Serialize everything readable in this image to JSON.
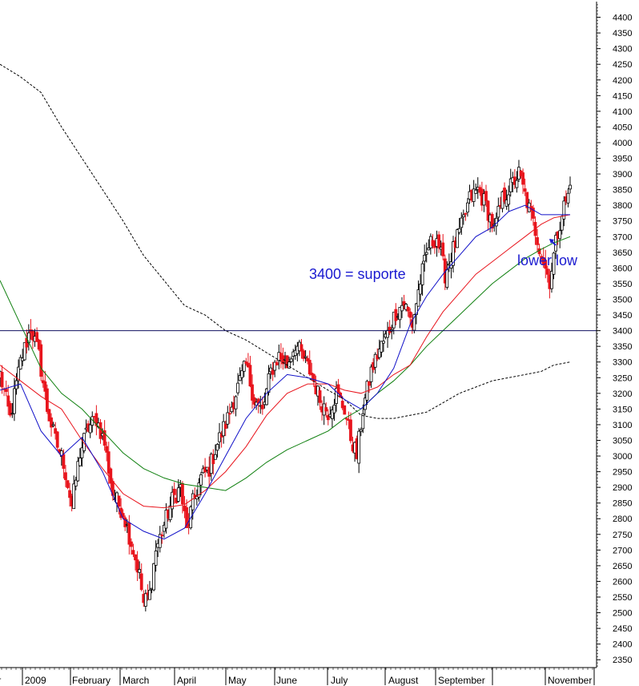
{
  "chart_data": {
    "type": "candlestick",
    "title": "",
    "xlabel": "",
    "ylabel": "",
    "ylim": [
      2325,
      4450
    ],
    "y_ticks": [
      2350,
      2400,
      2450,
      2500,
      2550,
      2600,
      2650,
      2700,
      2750,
      2800,
      2850,
      2900,
      2950,
      3000,
      3050,
      3100,
      3150,
      3200,
      3250,
      3300,
      3350,
      3400,
      3450,
      3500,
      3550,
      3600,
      3650,
      3700,
      3750,
      3800,
      3850,
      3900,
      3950,
      4000,
      4050,
      4100,
      4150,
      4200,
      4250,
      4300,
      4350,
      4400
    ],
    "month_labels": [
      "mber",
      "2009",
      "February",
      "March",
      "April",
      "May",
      "June",
      "July",
      "August",
      "September",
      "November"
    ],
    "grid": false,
    "colors": {
      "up_candle": "#000000",
      "down_candle": "#e8141c",
      "ma_short": "#1010c8",
      "ma_mid": "#e8141c",
      "ma_long": "#108010",
      "ma_longest": "#000000",
      "support_line": "#101060",
      "annotation": "#1a1ad0"
    },
    "support_level": 3400,
    "annotations": [
      {
        "text": "3400 = suporte"
      },
      {
        "text": "lower low"
      }
    ],
    "anchor_closes": [
      [
        0,
        3260
      ],
      [
        5,
        3120
      ],
      [
        10,
        3300
      ],
      [
        15,
        3410
      ],
      [
        19,
        3320
      ],
      [
        23,
        3150
      ],
      [
        27,
        3050
      ],
      [
        31,
        2980
      ],
      [
        35,
        2840
      ],
      [
        39,
        3010
      ],
      [
        43,
        3090
      ],
      [
        47,
        3120
      ],
      [
        51,
        3040
      ],
      [
        55,
        2880
      ],
      [
        60,
        2820
      ],
      [
        65,
        2700
      ],
      [
        68,
        2620
      ],
      [
        70,
        2530
      ],
      [
        73,
        2560
      ],
      [
        76,
        2700
      ],
      [
        80,
        2780
      ],
      [
        84,
        2860
      ],
      [
        88,
        2900
      ],
      [
        91,
        2760
      ],
      [
        94,
        2850
      ],
      [
        98,
        2930
      ],
      [
        102,
        2960
      ],
      [
        106,
        3040
      ],
      [
        111,
        3120
      ],
      [
        116,
        3220
      ],
      [
        120,
        3290
      ],
      [
        124,
        3180
      ],
      [
        128,
        3140
      ],
      [
        132,
        3270
      ],
      [
        136,
        3320
      ],
      [
        140,
        3290
      ],
      [
        144,
        3360
      ],
      [
        148,
        3310
      ],
      [
        152,
        3260
      ],
      [
        156,
        3180
      ],
      [
        160,
        3140
      ],
      [
        164,
        3200
      ],
      [
        168,
        3150
      ],
      [
        171,
        3060
      ],
      [
        174,
        3000
      ],
      [
        177,
        3150
      ],
      [
        181,
        3270
      ],
      [
        185,
        3340
      ],
      [
        189,
        3390
      ],
      [
        193,
        3460
      ],
      [
        197,
        3490
      ],
      [
        201,
        3420
      ],
      [
        205,
        3560
      ],
      [
        209,
        3670
      ],
      [
        213,
        3700
      ],
      [
        217,
        3580
      ],
      [
        221,
        3660
      ],
      [
        225,
        3730
      ],
      [
        229,
        3820
      ],
      [
        233,
        3850
      ],
      [
        237,
        3800
      ],
      [
        241,
        3720
      ],
      [
        245,
        3820
      ],
      [
        249,
        3860
      ],
      [
        253,
        3900
      ],
      [
        257,
        3810
      ],
      [
        261,
        3720
      ],
      [
        265,
        3620
      ],
      [
        268,
        3560
      ],
      [
        271,
        3680
      ],
      [
        274,
        3780
      ],
      [
        277,
        3830
      ],
      [
        278,
        3860
      ]
    ],
    "candle_count": 279,
    "ma_short_points": [
      [
        0,
        3210
      ],
      [
        10,
        3230
      ],
      [
        20,
        3080
      ],
      [
        30,
        3000
      ],
      [
        40,
        3060
      ],
      [
        50,
        2950
      ],
      [
        60,
        2800
      ],
      [
        70,
        2760
      ],
      [
        80,
        2735
      ],
      [
        90,
        2770
      ],
      [
        100,
        2880
      ],
      [
        110,
        3000
      ],
      [
        120,
        3120
      ],
      [
        130,
        3200
      ],
      [
        140,
        3260
      ],
      [
        150,
        3250
      ],
      [
        160,
        3230
      ],
      [
        168,
        3180
      ],
      [
        176,
        3150
      ],
      [
        184,
        3200
      ],
      [
        192,
        3280
      ],
      [
        200,
        3420
      ],
      [
        208,
        3510
      ],
      [
        216,
        3580
      ],
      [
        224,
        3640
      ],
      [
        232,
        3700
      ],
      [
        240,
        3730
      ],
      [
        248,
        3780
      ],
      [
        256,
        3800
      ],
      [
        264,
        3770
      ],
      [
        270,
        3770
      ],
      [
        278,
        3770
      ]
    ],
    "ma_mid_points": [
      [
        0,
        3290
      ],
      [
        10,
        3240
      ],
      [
        20,
        3190
      ],
      [
        30,
        3150
      ],
      [
        40,
        3050
      ],
      [
        50,
        2960
      ],
      [
        60,
        2880
      ],
      [
        70,
        2840
      ],
      [
        80,
        2835
      ],
      [
        90,
        2845
      ],
      [
        100,
        2890
      ],
      [
        110,
        2950
      ],
      [
        120,
        3030
      ],
      [
        130,
        3130
      ],
      [
        140,
        3200
      ],
      [
        150,
        3230
      ],
      [
        160,
        3230
      ],
      [
        168,
        3210
      ],
      [
        176,
        3200
      ],
      [
        184,
        3220
      ],
      [
        192,
        3260
      ],
      [
        200,
        3290
      ],
      [
        208,
        3380
      ],
      [
        216,
        3460
      ],
      [
        224,
        3520
      ],
      [
        232,
        3580
      ],
      [
        240,
        3620
      ],
      [
        248,
        3660
      ],
      [
        256,
        3700
      ],
      [
        264,
        3740
      ],
      [
        270,
        3760
      ],
      [
        278,
        3770
      ]
    ],
    "ma_long_points": [
      [
        0,
        3560
      ],
      [
        10,
        3420
      ],
      [
        20,
        3280
      ],
      [
        30,
        3200
      ],
      [
        40,
        3150
      ],
      [
        50,
        3080
      ],
      [
        60,
        3010
      ],
      [
        70,
        2960
      ],
      [
        80,
        2930
      ],
      [
        90,
        2910
      ],
      [
        100,
        2900
      ],
      [
        110,
        2890
      ],
      [
        120,
        2930
      ],
      [
        130,
        2980
      ],
      [
        140,
        3020
      ],
      [
        150,
        3050
      ],
      [
        160,
        3080
      ],
      [
        168,
        3120
      ],
      [
        176,
        3150
      ],
      [
        184,
        3200
      ],
      [
        192,
        3240
      ],
      [
        200,
        3290
      ],
      [
        208,
        3350
      ],
      [
        216,
        3400
      ],
      [
        224,
        3450
      ],
      [
        232,
        3500
      ],
      [
        240,
        3550
      ],
      [
        248,
        3590
      ],
      [
        256,
        3630
      ],
      [
        264,
        3660
      ],
      [
        270,
        3680
      ],
      [
        278,
        3700
      ]
    ],
    "ma_longest_points": [
      [
        0,
        4250
      ],
      [
        10,
        4210
      ],
      [
        20,
        4160
      ],
      [
        30,
        4050
      ],
      [
        40,
        3950
      ],
      [
        50,
        3850
      ],
      [
        60,
        3750
      ],
      [
        70,
        3640
      ],
      [
        80,
        3560
      ],
      [
        90,
        3480
      ],
      [
        100,
        3450
      ],
      [
        110,
        3400
      ],
      [
        120,
        3370
      ],
      [
        130,
        3330
      ],
      [
        140,
        3290
      ],
      [
        150,
        3250
      ],
      [
        160,
        3210
      ],
      [
        168,
        3180
      ],
      [
        176,
        3130
      ],
      [
        184,
        3120
      ],
      [
        192,
        3120
      ],
      [
        200,
        3130
      ],
      [
        208,
        3140
      ],
      [
        216,
        3170
      ],
      [
        224,
        3200
      ],
      [
        232,
        3220
      ],
      [
        240,
        3240
      ],
      [
        248,
        3250
      ],
      [
        256,
        3260
      ],
      [
        264,
        3270
      ],
      [
        270,
        3290
      ],
      [
        278,
        3300
      ]
    ]
  }
}
